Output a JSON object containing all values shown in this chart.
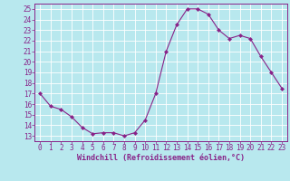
{
  "x": [
    0,
    1,
    2,
    3,
    4,
    5,
    6,
    7,
    8,
    9,
    10,
    11,
    12,
    13,
    14,
    15,
    16,
    17,
    18,
    19,
    20,
    21,
    22,
    23
  ],
  "y": [
    17.0,
    15.8,
    15.5,
    14.8,
    13.8,
    13.2,
    13.3,
    13.3,
    13.0,
    13.3,
    14.5,
    17.0,
    21.0,
    23.5,
    25.0,
    25.0,
    24.5,
    23.0,
    22.2,
    22.5,
    22.2,
    20.5,
    19.0,
    17.5
  ],
  "line_color": "#882288",
  "marker": "D",
  "marker_size": 2.0,
  "bg_color": "#b8e8ee",
  "grid_color": "#ffffff",
  "xlabel": "Windchill (Refroidissement éolien,°C)",
  "xlabel_color": "#882288",
  "tick_color": "#882288",
  "ylim": [
    12.5,
    25.5
  ],
  "xlim": [
    -0.5,
    23.5
  ],
  "yticks": [
    13,
    14,
    15,
    16,
    17,
    18,
    19,
    20,
    21,
    22,
    23,
    24,
    25
  ],
  "xticks": [
    0,
    1,
    2,
    3,
    4,
    5,
    6,
    7,
    8,
    9,
    10,
    11,
    12,
    13,
    14,
    15,
    16,
    17,
    18,
    19,
    20,
    21,
    22,
    23
  ],
  "tick_fontsize": 5.5,
  "xlabel_fontsize": 6.0,
  "linewidth": 0.8,
  "spine_color": "#882288"
}
